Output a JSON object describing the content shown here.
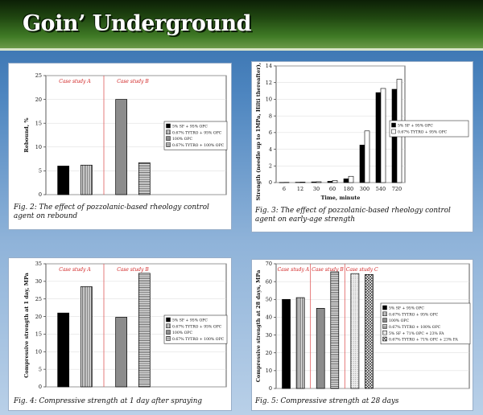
{
  "header": {
    "title": "Goin’ Underground"
  },
  "chart_data": [
    {
      "id": "c1",
      "type": "bar",
      "ylabel": "Rebound, %",
      "ylim": [
        0,
        25
      ],
      "yticks": [
        0,
        5,
        10,
        15,
        20,
        25
      ],
      "groups": [
        {
          "label": "Case study A",
          "bars": [
            {
              "series": 0,
              "value": 6.0
            },
            {
              "series": 1,
              "value": 6.2
            }
          ]
        },
        {
          "label": "Case study B",
          "bars": [
            {
              "series": 2,
              "value": 20.0
            },
            {
              "series": 3,
              "value": 6.7
            }
          ]
        }
      ],
      "series": [
        {
          "name": "5% SF + 95% OPC",
          "pattern": "black"
        },
        {
          "name": "0.67% TYTRO + 95% OPC",
          "pattern": "vlines"
        },
        {
          "name": "100% OPC",
          "pattern": "gray"
        },
        {
          "name": "0.67% TYTRO + 100% OPC",
          "pattern": "hlines"
        }
      ],
      "caption": "Fig. 2: The effect of pozzolanic-based rheology control agent on rebound"
    },
    {
      "id": "c2",
      "type": "bar",
      "ylabel": "Strength (needle up to 1MPa, Hilti thereafter), MPa",
      "xlabel": "Time, minute",
      "ylim": [
        0,
        14
      ],
      "yticks": [
        0,
        2,
        4,
        6,
        8,
        10,
        12,
        14
      ],
      "categories": [
        "6",
        "12",
        "30",
        "60",
        "180",
        "300",
        "540",
        "720"
      ],
      "series": [
        {
          "name": "5% SF + 95% OPC",
          "pattern": "black",
          "values": [
            0.02,
            0.04,
            0.08,
            0.15,
            0.45,
            4.5,
            10.8,
            11.2
          ]
        },
        {
          "name": "0.67% TYTRO + 95% OPC",
          "pattern": "white",
          "values": [
            0.03,
            0.06,
            0.1,
            0.25,
            0.75,
            6.2,
            11.3,
            12.4
          ]
        }
      ],
      "caption": "Fig. 3: The effect of pozzolanic-based rheology control agent on early-age strength"
    },
    {
      "id": "c3",
      "type": "bar",
      "ylabel": "Compressive strength at 1 day, MPa",
      "ylim": [
        0,
        35
      ],
      "yticks": [
        0,
        5,
        10,
        15,
        20,
        25,
        30,
        35
      ],
      "groups": [
        {
          "label": "Case study A",
          "bars": [
            {
              "series": 0,
              "value": 21.0
            },
            {
              "series": 1,
              "value": 28.5
            }
          ]
        },
        {
          "label": "Case study B",
          "bars": [
            {
              "series": 2,
              "value": 19.8
            },
            {
              "series": 3,
              "value": 32.3
            }
          ]
        }
      ],
      "series": [
        {
          "name": "5% SF + 95% OPC",
          "pattern": "black"
        },
        {
          "name": "0.67% TYTRO + 95% OPC",
          "pattern": "vlines"
        },
        {
          "name": "100% OPC",
          "pattern": "gray"
        },
        {
          "name": "0.67% TYTRO + 100% OPC",
          "pattern": "hlines"
        }
      ],
      "caption": "Fig. 4: Compressive strength at 1 day after spraying"
    },
    {
      "id": "c4",
      "type": "bar",
      "ylabel": "Compressive strength at 28 days, MPa",
      "ylim": [
        0,
        70
      ],
      "yticks": [
        0,
        10,
        20,
        30,
        40,
        50,
        60,
        70
      ],
      "groups": [
        {
          "label": "Case study A",
          "bars": [
            {
              "series": 0,
              "value": 50.0
            },
            {
              "series": 1,
              "value": 51.0
            }
          ]
        },
        {
          "label": "Case study B",
          "bars": [
            {
              "series": 2,
              "value": 45.0
            },
            {
              "series": 3,
              "value": 65.5
            }
          ]
        },
        {
          "label": "Case study C",
          "bars": [
            {
              "series": 4,
              "value": 64.5
            },
            {
              "series": 5,
              "value": 64.0
            }
          ]
        }
      ],
      "series": [
        {
          "name": "5% SF + 95% OPC",
          "pattern": "black"
        },
        {
          "name": "0.67% TYTRO + 95% OPC",
          "pattern": "vlines"
        },
        {
          "name": "100% OPC",
          "pattern": "gray"
        },
        {
          "name": "0.67% TYTRO + 100% OPC",
          "pattern": "hlines"
        },
        {
          "name": "5% SF + 71% OPC + 23% FA",
          "pattern": "dots"
        },
        {
          "name": "0.67% TYTRO + 71% OPC + 23% FA",
          "pattern": "cross"
        }
      ],
      "caption": "Fig. 5: Compressive strength at 28 days"
    }
  ],
  "colors": {
    "case_label": "#d02020",
    "divider": "#e05a5a",
    "gray_bar": "#8c8c8c"
  }
}
